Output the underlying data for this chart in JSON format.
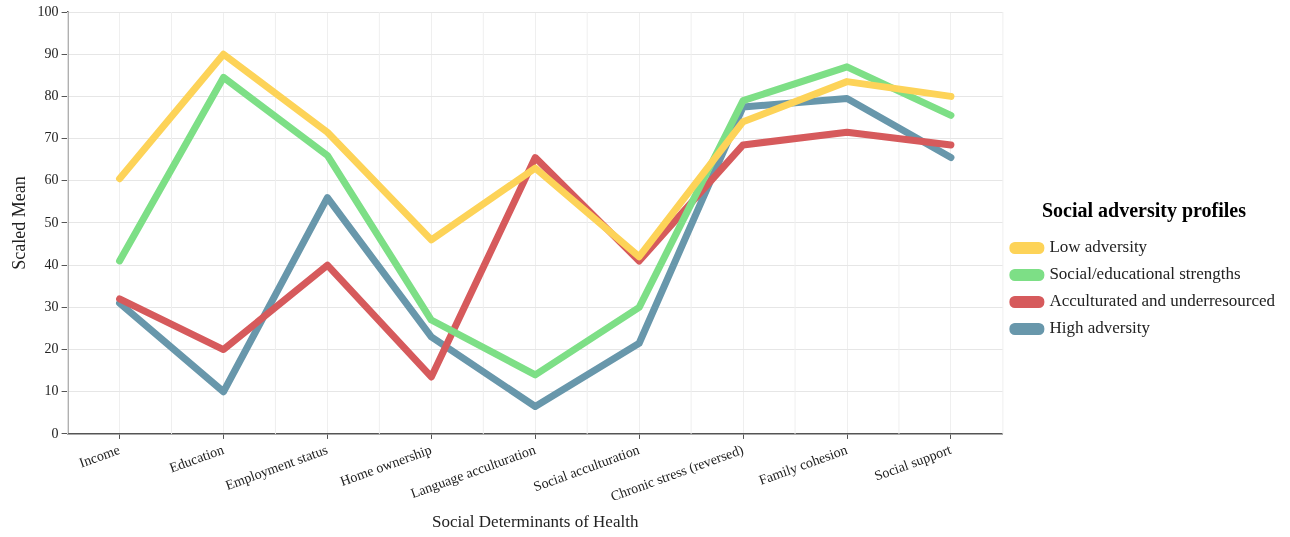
{
  "chart_data": {
    "type": "line",
    "xlabel": "Social Determinants of Health",
    "ylabel": "Scaled Mean",
    "legend_title": "Social adversity profiles",
    "categories": [
      "Income",
      "Education",
      "Employment status",
      "Home ownership",
      "Language acculturation",
      "Social acculturation",
      "Chronic stress (reversed)",
      "Family cohesion",
      "Social support"
    ],
    "series": [
      {
        "name": "Low adversity",
        "color": "#fdd358",
        "values": [
          60.5,
          90,
          71.5,
          46,
          63,
          42,
          74,
          83.5,
          80
        ]
      },
      {
        "name": "Social/educational strengths",
        "color": "#7ddf86",
        "values": [
          41,
          84.5,
          66,
          27,
          14,
          30,
          79,
          87,
          75.5
        ]
      },
      {
        "name": "Acculturated and underresourced",
        "color": "#d65a5c",
        "values": [
          32,
          20,
          40,
          13.5,
          65.5,
          41,
          68.5,
          71.5,
          68.5
        ]
      },
      {
        "name": "High adversity",
        "color": "#6897ab",
        "values": [
          31,
          10,
          56,
          23,
          6.5,
          21.5,
          77.5,
          79.5,
          65.5
        ]
      }
    ],
    "ylim": [
      0,
      100
    ],
    "yticks": [
      0,
      10,
      20,
      30,
      40,
      50,
      60,
      70,
      80,
      90,
      100
    ],
    "grid": true,
    "legend": "right",
    "marker": "none",
    "line_style": "solid"
  }
}
